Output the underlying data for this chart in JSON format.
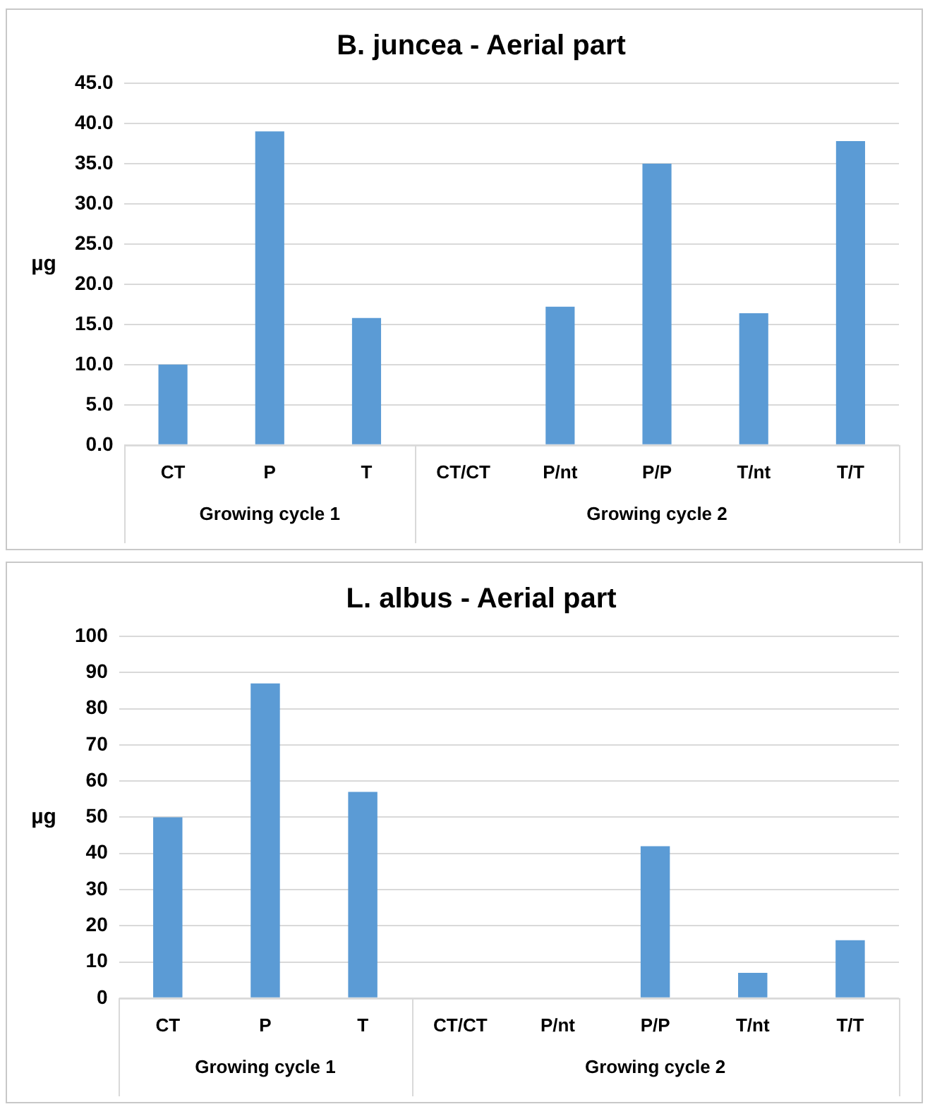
{
  "chart_data": [
    {
      "type": "bar",
      "title": "B. juncea - Aerial part",
      "ylabel": "µg",
      "categories": [
        "CT",
        "P",
        "T",
        "CT/CT",
        "P/nt",
        "P/P",
        "T/nt",
        "T/T"
      ],
      "values": [
        10.0,
        39.0,
        15.8,
        null,
        17.2,
        35.0,
        16.4,
        37.8
      ],
      "color": "#5b9bd5",
      "ylim": [
        0,
        45
      ],
      "yticks": [
        {
          "value": 0,
          "label": "0.0"
        },
        {
          "value": 5,
          "label": "5.0"
        },
        {
          "value": 10,
          "label": "10.0"
        },
        {
          "value": 15,
          "label": "15.0"
        },
        {
          "value": 20,
          "label": "20.0"
        },
        {
          "value": 25,
          "label": "25.0"
        },
        {
          "value": 30,
          "label": "30.0"
        },
        {
          "value": 35,
          "label": "35.0"
        },
        {
          "value": 40,
          "label": "40.0"
        },
        {
          "value": 45,
          "label": "45.0"
        }
      ],
      "grid": "y",
      "legend": false,
      "annotations": [
        "Growing cycle 1",
        "Growing cycle 2"
      ]
    },
    {
      "type": "bar",
      "title": "L. albus - Aerial part",
      "ylabel": "µg",
      "categories": [
        "CT",
        "P",
        "T",
        "CT/CT",
        "P/nt",
        "P/P",
        "T/nt",
        "T/T"
      ],
      "values": [
        50,
        87,
        57,
        null,
        null,
        42,
        7,
        16
      ],
      "color": "#5b9bd5",
      "ylim": [
        0,
        100
      ],
      "yticks": [
        0,
        10,
        20,
        30,
        40,
        50,
        60,
        70,
        80,
        90,
        100
      ],
      "grid": "y",
      "legend": false,
      "annotations": [
        "Growing cycle 1",
        "Growing cycle 2"
      ]
    }
  ]
}
